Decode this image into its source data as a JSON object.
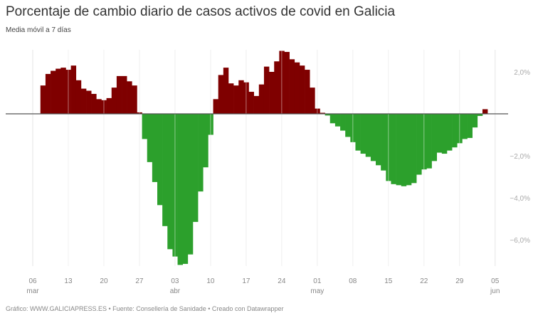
{
  "header": {
    "title": "Porcentaje de cambio diario de casos activos de covid en Galicia",
    "subtitle": "Media móvil a 7 días"
  },
  "footer": {
    "text": "Gráfico: WWW.GALICIAPRESS.ES • Fuente: Consellería de Sanidade • Creado con Datawrapper"
  },
  "colors": {
    "positive": "#7f0000",
    "negative": "#2ca02c",
    "grid": "#e6e6e6",
    "axis": "#555555"
  },
  "chart_data": {
    "type": "bar",
    "title": "Porcentaje de cambio diario de casos activos de covid en Galicia",
    "subtitle": "Media móvil a 7 días",
    "xlabel": "",
    "ylabel": "",
    "ylim": [
      -7.2,
      3.0
    ],
    "grid": true,
    "y_ticks": [
      {
        "value": 2,
        "label": "2,0%"
      },
      {
        "value": -2,
        "label": "−2,0%"
      },
      {
        "value": -4,
        "label": "−4,0%"
      },
      {
        "value": -6,
        "label": "−6,0%"
      }
    ],
    "x_ticks": [
      {
        "day": "06",
        "month": "mar"
      },
      {
        "day": "13",
        "month": ""
      },
      {
        "day": "20",
        "month": ""
      },
      {
        "day": "27",
        "month": ""
      },
      {
        "day": "03",
        "month": "abr"
      },
      {
        "day": "10",
        "month": ""
      },
      {
        "day": "17",
        "month": ""
      },
      {
        "day": "24",
        "month": ""
      },
      {
        "day": "01",
        "month": "may"
      },
      {
        "day": "08",
        "month": ""
      },
      {
        "day": "15",
        "month": ""
      },
      {
        "day": "22",
        "month": ""
      },
      {
        "day": "29",
        "month": ""
      },
      {
        "day": "05",
        "month": "jun"
      }
    ],
    "start_date": "08 mar",
    "end_date": "07 jun",
    "values": [
      1.35,
      1.9,
      2.05,
      2.15,
      2.2,
      2.1,
      2.3,
      1.6,
      1.2,
      1.1,
      0.95,
      0.7,
      0.65,
      0.75,
      1.25,
      1.8,
      1.8,
      1.55,
      1.35,
      0.07,
      -1.2,
      -2.3,
      -3.25,
      -4.35,
      -5.35,
      -6.45,
      -6.8,
      -7.2,
      -7.15,
      -6.7,
      -5.15,
      -3.7,
      -2.55,
      -1.0,
      0.7,
      1.85,
      2.2,
      1.45,
      1.35,
      1.6,
      1.5,
      1.05,
      0.85,
      1.4,
      2.25,
      2.0,
      2.5,
      3.0,
      2.95,
      2.6,
      2.45,
      2.3,
      2.1,
      1.25,
      0.25,
      0.05,
      -0.08,
      -0.45,
      -0.6,
      -0.8,
      -1.1,
      -1.35,
      -1.75,
      -1.9,
      -2.05,
      -2.25,
      -2.45,
      -2.7,
      -3.2,
      -3.35,
      -3.4,
      -3.45,
      -3.4,
      -3.3,
      -2.9,
      -2.65,
      -2.6,
      -2.25,
      -1.85,
      -1.9,
      -1.75,
      -1.6,
      -1.4,
      -1.2,
      -1.15,
      -0.65,
      -0.1,
      0.22
    ]
  }
}
